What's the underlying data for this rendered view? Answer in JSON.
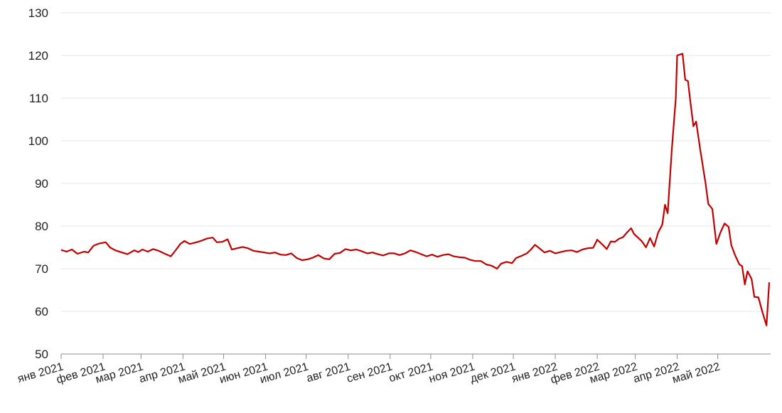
{
  "chart_data": {
    "type": "line",
    "title": "",
    "xlabel": "",
    "ylabel": "",
    "ylim": [
      50,
      130
    ],
    "yticks": [
      50,
      60,
      70,
      80,
      90,
      100,
      110,
      120,
      130
    ],
    "grid": "horizontal",
    "color": "#c00000",
    "x_tick_labels": [
      "янв 2021",
      "фев 2021",
      "мар 2021",
      "апр 2021",
      "май 2021",
      "июн 2021",
      "июл 2021",
      "авг 2021",
      "сен 2021",
      "окт 2021",
      "ноя 2021",
      "дек 2021",
      "янв 2022",
      "фев 2022",
      "мар 2022",
      "апр 2022",
      "май 2022"
    ],
    "series": [
      {
        "values": [
          [
            "2021-01-01",
            74.4
          ],
          [
            "2021-01-05",
            74.0
          ],
          [
            "2021-01-09",
            74.5
          ],
          [
            "2021-01-13",
            73.5
          ],
          [
            "2021-01-18",
            74.0
          ],
          [
            "2021-01-21",
            73.8
          ],
          [
            "2021-01-25",
            75.4
          ],
          [
            "2021-01-29",
            75.9
          ],
          [
            "2021-02-03",
            76.2
          ],
          [
            "2021-02-06",
            75.0
          ],
          [
            "2021-02-10",
            74.3
          ],
          [
            "2021-02-15",
            73.8
          ],
          [
            "2021-02-19",
            73.4
          ],
          [
            "2021-02-24",
            74.3
          ],
          [
            "2021-02-27",
            73.9
          ],
          [
            "2021-03-02",
            74.5
          ],
          [
            "2021-03-06",
            74.0
          ],
          [
            "2021-03-10",
            74.6
          ],
          [
            "2021-03-14",
            74.2
          ],
          [
            "2021-03-18",
            73.6
          ],
          [
            "2021-03-23",
            72.9
          ],
          [
            "2021-03-27",
            74.5
          ],
          [
            "2021-03-30",
            75.8
          ],
          [
            "2021-04-02",
            76.5
          ],
          [
            "2021-04-06",
            75.8
          ],
          [
            "2021-04-11",
            76.2
          ],
          [
            "2021-04-15",
            76.6
          ],
          [
            "2021-04-19",
            77.1
          ],
          [
            "2021-04-23",
            77.3
          ],
          [
            "2021-04-26",
            76.2
          ],
          [
            "2021-04-30",
            76.3
          ],
          [
            "2021-05-04",
            76.9
          ],
          [
            "2021-05-07",
            74.5
          ],
          [
            "2021-05-11",
            74.8
          ],
          [
            "2021-05-15",
            75.1
          ],
          [
            "2021-05-19",
            74.8
          ],
          [
            "2021-05-23",
            74.2
          ],
          [
            "2021-05-27",
            74.0
          ],
          [
            "2021-05-31",
            73.8
          ],
          [
            "2021-06-04",
            73.6
          ],
          [
            "2021-06-08",
            73.8
          ],
          [
            "2021-06-12",
            73.3
          ],
          [
            "2021-06-16",
            73.2
          ],
          [
            "2021-06-20",
            73.6
          ],
          [
            "2021-06-24",
            72.5
          ],
          [
            "2021-06-28",
            72.0
          ],
          [
            "2021-07-02",
            72.2
          ],
          [
            "2021-07-06",
            72.6
          ],
          [
            "2021-07-10",
            73.2
          ],
          [
            "2021-07-14",
            72.4
          ],
          [
            "2021-07-18",
            72.2
          ],
          [
            "2021-07-22",
            73.5
          ],
          [
            "2021-07-26",
            73.7
          ],
          [
            "2021-07-30",
            74.6
          ],
          [
            "2021-08-03",
            74.3
          ],
          [
            "2021-08-07",
            74.5
          ],
          [
            "2021-08-11",
            74.1
          ],
          [
            "2021-08-15",
            73.6
          ],
          [
            "2021-08-19",
            73.8
          ],
          [
            "2021-08-23",
            73.4
          ],
          [
            "2021-08-27",
            73.1
          ],
          [
            "2021-08-31",
            73.6
          ],
          [
            "2021-09-04",
            73.6
          ],
          [
            "2021-09-08",
            73.2
          ],
          [
            "2021-09-12",
            73.6
          ],
          [
            "2021-09-16",
            74.3
          ],
          [
            "2021-09-20",
            73.9
          ],
          [
            "2021-09-24",
            73.4
          ],
          [
            "2021-09-28",
            72.9
          ],
          [
            "2021-10-02",
            73.3
          ],
          [
            "2021-10-06",
            72.8
          ],
          [
            "2021-10-10",
            73.2
          ],
          [
            "2021-10-14",
            73.4
          ],
          [
            "2021-10-18",
            72.9
          ],
          [
            "2021-10-22",
            72.7
          ],
          [
            "2021-10-26",
            72.6
          ],
          [
            "2021-10-30",
            72.1
          ],
          [
            "2021-11-03",
            71.8
          ],
          [
            "2021-11-07",
            71.8
          ],
          [
            "2021-11-11",
            71.0
          ],
          [
            "2021-11-15",
            70.7
          ],
          [
            "2021-11-19",
            70.0
          ],
          [
            "2021-11-22",
            71.2
          ],
          [
            "2021-11-26",
            71.6
          ],
          [
            "2021-11-30",
            71.3
          ],
          [
            "2021-12-03",
            72.5
          ],
          [
            "2021-12-07",
            73.0
          ],
          [
            "2021-12-11",
            73.6
          ],
          [
            "2021-12-14",
            74.5
          ],
          [
            "2021-12-17",
            75.6
          ],
          [
            "2021-12-21",
            74.6
          ],
          [
            "2021-12-24",
            73.8
          ],
          [
            "2021-12-28",
            74.2
          ],
          [
            "2022-01-01",
            73.6
          ],
          [
            "2022-01-05",
            73.9
          ],
          [
            "2022-01-09",
            74.2
          ],
          [
            "2022-01-13",
            74.3
          ],
          [
            "2022-01-17",
            73.9
          ],
          [
            "2022-01-21",
            74.5
          ],
          [
            "2022-01-25",
            74.8
          ],
          [
            "2022-01-29",
            74.9
          ],
          [
            "2022-02-01",
            76.8
          ],
          [
            "2022-02-05",
            75.6
          ],
          [
            "2022-02-08",
            74.6
          ],
          [
            "2022-02-11",
            76.4
          ],
          [
            "2022-02-14",
            76.3
          ],
          [
            "2022-02-17",
            77.0
          ],
          [
            "2022-02-20",
            77.4
          ],
          [
            "2022-02-23",
            78.5
          ],
          [
            "2022-02-26",
            79.5
          ],
          [
            "2022-02-28",
            78.2
          ],
          [
            "2022-03-03",
            77.3
          ],
          [
            "2022-03-06",
            76.4
          ],
          [
            "2022-03-09",
            75.0
          ],
          [
            "2022-03-12",
            77.2
          ],
          [
            "2022-03-15",
            75.2
          ],
          [
            "2022-03-18",
            78.5
          ],
          [
            "2022-03-21",
            80.3
          ],
          [
            "2022-03-23",
            85.0
          ],
          [
            "2022-03-25",
            83.0
          ],
          [
            "2022-03-28",
            97.7
          ],
          [
            "2022-03-31",
            110.0
          ],
          [
            "2022-04-01",
            120.0
          ],
          [
            "2022-04-05",
            120.4
          ],
          [
            "2022-04-07",
            114.3
          ],
          [
            "2022-04-09",
            114.0
          ],
          [
            "2022-04-11",
            108.6
          ],
          [
            "2022-04-13",
            103.4
          ],
          [
            "2022-04-15",
            104.5
          ],
          [
            "2022-04-18",
            98.0
          ],
          [
            "2022-04-22",
            90.0
          ],
          [
            "2022-04-24",
            85.2
          ],
          [
            "2022-04-27",
            84.0
          ],
          [
            "2022-04-30",
            75.8
          ],
          [
            "2022-05-03",
            78.5
          ],
          [
            "2022-05-06",
            80.6
          ],
          [
            "2022-05-09",
            79.8
          ],
          [
            "2022-05-11",
            75.5
          ],
          [
            "2022-05-14",
            73.0
          ],
          [
            "2022-05-17",
            71.0
          ],
          [
            "2022-05-19",
            70.6
          ],
          [
            "2022-05-21",
            66.3
          ],
          [
            "2022-05-23",
            69.4
          ],
          [
            "2022-05-26",
            67.6
          ],
          [
            "2022-05-28",
            63.4
          ],
          [
            "2022-05-31",
            63.3
          ],
          [
            "2022-06-03",
            59.8
          ],
          [
            "2022-06-06",
            56.7
          ],
          [
            "2022-06-08",
            66.8
          ]
        ]
      }
    ]
  }
}
